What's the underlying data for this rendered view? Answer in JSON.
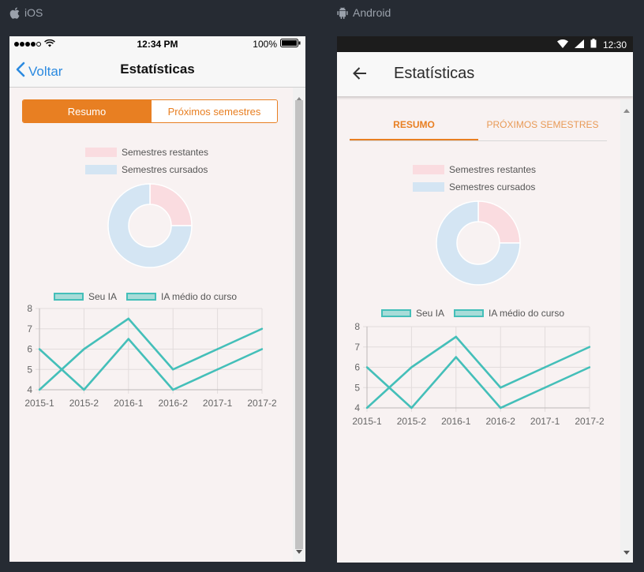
{
  "platforms": {
    "ios_label": "iOS",
    "android_label": "Android"
  },
  "ios": {
    "status": {
      "time": "12:34 PM",
      "battery": "100%"
    },
    "nav": {
      "back_label": "Voltar",
      "title": "Estatísticas"
    },
    "segment": {
      "active": "Resumo",
      "inactive": "Próximos semestres"
    }
  },
  "android": {
    "status": {
      "time": "12:30"
    },
    "toolbar": {
      "title": "Estatísticas"
    },
    "tabs": {
      "active": "RESUMO",
      "inactive": "PRÓXIMOS SEMESTRES"
    }
  },
  "colors": {
    "accent": "#e87f22",
    "line": "#44bfb9",
    "remaining": "#fadce0",
    "completed": "#d4e5f3"
  },
  "chart_data": [
    {
      "type": "pie",
      "variant": "doughnut",
      "labels": [
        "Semestres restantes",
        "Semestres cursados"
      ],
      "values": [
        25,
        75
      ],
      "colors": [
        "#fadce0",
        "#d4e5f3"
      ],
      "legend": "top"
    },
    {
      "type": "line",
      "categories": [
        "2015-1",
        "2015-2",
        "2016-1",
        "2016-2",
        "2017-1",
        "2017-2"
      ],
      "series": [
        {
          "name": "Seu IA",
          "values": [
            4,
            6,
            7.5,
            5,
            6,
            7
          ]
        },
        {
          "name": "IA médio do curso",
          "values": [
            6,
            4,
            6.5,
            4,
            5,
            6
          ]
        }
      ],
      "ylim": [
        4,
        8
      ],
      "yticks": [
        "4",
        "5",
        "6",
        "7",
        "8"
      ],
      "grid": true,
      "legend": "top"
    }
  ]
}
